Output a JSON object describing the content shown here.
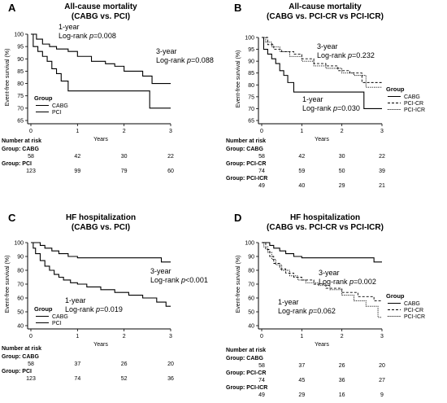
{
  "chart_data": [
    {
      "panel": "A",
      "type": "line",
      "title": "All-cause mortality",
      "subtitle": "(CABG vs. PCI)",
      "ylabel": "Event-free survival (%)",
      "xlabel": "Years",
      "xlim": [
        0,
        3
      ],
      "ylim": [
        65,
        100
      ],
      "xticks": [
        "0",
        "1",
        "2",
        "3"
      ],
      "yticks": [
        "65",
        "70",
        "75",
        "80",
        "85",
        "90",
        "95",
        "100"
      ],
      "legend_title": "Group",
      "legend_placement": "bottom-left",
      "series": [
        {
          "name": "CABG",
          "style": "solid",
          "x": [
            0,
            0.05,
            0.15,
            0.25,
            0.35,
            0.45,
            0.55,
            0.65,
            0.8,
            2.55,
            2.55,
            3.0
          ],
          "y": [
            100,
            95,
            93,
            91,
            89,
            86,
            84,
            81,
            77,
            77,
            70,
            70
          ]
        },
        {
          "name": "PCI",
          "style": "solid",
          "x": [
            0,
            0.12,
            0.25,
            0.4,
            0.55,
            0.8,
            1.0,
            1.3,
            1.6,
            1.8,
            2.0,
            2.4,
            2.6,
            3.0
          ],
          "y": [
            100,
            98,
            96,
            95,
            94,
            93,
            91,
            89,
            88,
            87,
            85,
            83,
            80,
            80
          ]
        }
      ],
      "annotations": [
        {
          "line1": "1-year",
          "line2_prefix": "Log-rank ",
          "italic": "p",
          "line2_suffix": "=0.008"
        },
        {
          "line1": "3-year",
          "line2_prefix": "Log-rank ",
          "italic": "p",
          "line2_suffix": "=0.088"
        }
      ],
      "risk_table": {
        "title": "Number at risk",
        "groups": [
          {
            "label": "Group: CABG",
            "values": [
              "58",
              "42",
              "30",
              "22"
            ]
          },
          {
            "label": "Group: PCI",
            "values": [
              "123",
              "99",
              "79",
              "60"
            ]
          }
        ]
      }
    },
    {
      "panel": "B",
      "type": "line",
      "title": "All-cause mortality",
      "subtitle": "(CABG vs. PCI-CR vs PCI-ICR)",
      "ylabel": "Event-free survival (%)",
      "xlabel": "Years",
      "xlim": [
        0,
        3
      ],
      "ylim": [
        65,
        100
      ],
      "xticks": [
        "0",
        "1",
        "2",
        "3"
      ],
      "yticks": [
        "65",
        "70",
        "75",
        "80",
        "85",
        "90",
        "95",
        "100"
      ],
      "legend_title": "Group",
      "legend_placement": "right",
      "series": [
        {
          "name": "CABG",
          "style": "solid",
          "x": [
            0,
            0.05,
            0.15,
            0.25,
            0.35,
            0.45,
            0.55,
            0.65,
            0.8,
            2.55,
            2.55,
            3.0
          ],
          "y": [
            100,
            95,
            93,
            91,
            89,
            86,
            84,
            81,
            77,
            77,
            70,
            70
          ]
        },
        {
          "name": "PCI-CR",
          "style": "dashed",
          "x": [
            0,
            0.15,
            0.3,
            0.5,
            0.8,
            1.0,
            1.3,
            1.6,
            1.9,
            2.2,
            2.5,
            3.0
          ],
          "y": [
            100,
            97,
            95,
            94,
            93,
            91,
            89,
            88,
            86,
            85,
            81,
            81
          ]
        },
        {
          "name": "PCI-ICR",
          "style": "dotted",
          "x": [
            0,
            0.1,
            0.25,
            0.45,
            0.7,
            1.0,
            1.3,
            1.6,
            2.0,
            2.3,
            2.6,
            3.0
          ],
          "y": [
            100,
            98,
            96,
            94,
            92,
            90,
            88,
            87,
            85,
            84,
            79,
            79
          ]
        }
      ],
      "annotations": [
        {
          "line1": "3-year",
          "line2_prefix": "Log-rank ",
          "italic": "p",
          "line2_suffix": "=0.232"
        },
        {
          "line1": "1-year",
          "line2_prefix": "Log-rank ",
          "italic": "p",
          "line2_suffix": "=0.030"
        }
      ],
      "risk_table": {
        "title": "Number at risk",
        "groups": [
          {
            "label": "Group: CABG",
            "values": [
              "58",
              "42",
              "30",
              "22"
            ]
          },
          {
            "label": "Group: PCI-CR",
            "values": [
              "74",
              "59",
              "50",
              "39"
            ]
          },
          {
            "label": "Group: PCI-ICR",
            "values": [
              "49",
              "40",
              "29",
              "21"
            ]
          }
        ]
      }
    },
    {
      "panel": "C",
      "type": "line",
      "title": "HF hospitalization",
      "subtitle": "(CABG vs. PCI)",
      "ylabel": "Event-free survival (%)",
      "xlabel": "Years",
      "xlim": [
        0,
        3
      ],
      "ylim": [
        40,
        100
      ],
      "xticks": [
        "0",
        "1",
        "2",
        "3"
      ],
      "yticks": [
        "40",
        "50",
        "60",
        "70",
        "80",
        "90",
        "100"
      ],
      "legend_title": "Group",
      "legend_placement": "bottom-left",
      "series": [
        {
          "name": "CABG",
          "style": "solid",
          "x": [
            0,
            0.2,
            0.3,
            0.45,
            0.6,
            0.8,
            1.0,
            2.8,
            2.8,
            3.0
          ],
          "y": [
            100,
            98,
            96,
            94,
            92,
            90,
            89,
            89,
            86,
            86
          ]
        },
        {
          "name": "PCI",
          "style": "solid",
          "x": [
            0,
            0.05,
            0.1,
            0.2,
            0.3,
            0.4,
            0.5,
            0.6,
            0.7,
            0.85,
            1.0,
            1.2,
            1.5,
            1.8,
            2.1,
            2.4,
            2.7,
            2.9,
            3.0
          ],
          "y": [
            100,
            96,
            92,
            87,
            83,
            80,
            77,
            75,
            73,
            71,
            70,
            68,
            66,
            64,
            62,
            60,
            57,
            54,
            54
          ]
        }
      ],
      "annotations": [
        {
          "line1": "3-year",
          "line2_prefix": "Log-rank ",
          "italic": "p",
          "line2_suffix": "<0.001"
        },
        {
          "line1": "1-year",
          "line2_prefix": "Log-rank ",
          "italic": "p",
          "line2_suffix": "=0.019"
        }
      ],
      "risk_table": {
        "title": "Number at risk",
        "groups": [
          {
            "label": "Group: CABG",
            "values": [
              "58",
              "37",
              "26",
              "20"
            ]
          },
          {
            "label": "Group: PCI",
            "values": [
              "123",
              "74",
              "52",
              "36"
            ]
          }
        ]
      }
    },
    {
      "panel": "D",
      "type": "line",
      "title": "HF hospitalization",
      "subtitle": "(CABG vs. PCI-CR vs PCI-ICR)",
      "ylabel": "Event-free survival (%)",
      "xlabel": "Years",
      "xlim": [
        0,
        3
      ],
      "ylim": [
        40,
        100
      ],
      "xticks": [
        "0",
        "1",
        "2",
        "3"
      ],
      "yticks": [
        "40",
        "50",
        "60",
        "70",
        "80",
        "90",
        "100"
      ],
      "legend_title": "Group",
      "legend_placement": "right",
      "series": [
        {
          "name": "CABG",
          "style": "solid",
          "x": [
            0,
            0.2,
            0.3,
            0.45,
            0.6,
            0.8,
            1.0,
            2.8,
            2.8,
            3.0
          ],
          "y": [
            100,
            98,
            96,
            94,
            92,
            90,
            89,
            89,
            86,
            86
          ]
        },
        {
          "name": "PCI-CR",
          "style": "dashed",
          "x": [
            0,
            0.1,
            0.2,
            0.3,
            0.45,
            0.6,
            0.8,
            1.0,
            1.3,
            1.6,
            2.0,
            2.4,
            2.8,
            3.0
          ],
          "y": [
            100,
            95,
            90,
            85,
            81,
            78,
            75,
            73,
            70,
            67,
            64,
            61,
            58,
            58
          ]
        },
        {
          "name": "PCI-ICR",
          "style": "dotted",
          "x": [
            0,
            0.05,
            0.15,
            0.25,
            0.35,
            0.5,
            0.7,
            0.9,
            1.1,
            1.4,
            1.7,
            2.0,
            2.3,
            2.6,
            2.9,
            3.0
          ],
          "y": [
            100,
            97,
            93,
            88,
            84,
            80,
            76,
            73,
            71,
            69,
            66,
            62,
            58,
            54,
            46,
            46
          ]
        }
      ],
      "annotations": [
        {
          "line1": "3-year",
          "line2_prefix": "Log-rank ",
          "italic": "p",
          "line2_suffix": "=0.002"
        },
        {
          "line1": "1-year",
          "line2_prefix": "Log-rank ",
          "italic": "p",
          "line2_suffix": "=0.062"
        }
      ],
      "risk_table": {
        "title": "Number at risk",
        "groups": [
          {
            "label": "Group: CABG",
            "values": [
              "58",
              "37",
              "26",
              "20"
            ]
          },
          {
            "label": "Group: PCI-CR",
            "values": [
              "74",
              "45",
              "36",
              "27"
            ]
          },
          {
            "label": "Group: PCI-ICR",
            "values": [
              "49",
              "29",
              "16",
              "9"
            ]
          }
        ]
      }
    }
  ]
}
